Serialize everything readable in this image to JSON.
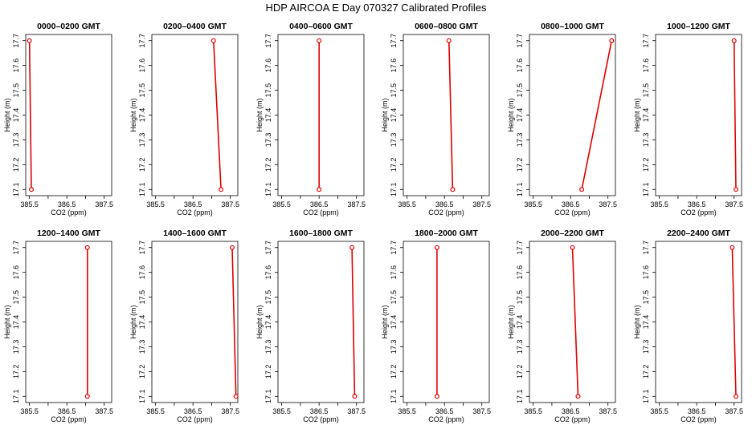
{
  "figure": {
    "title": "HDP  AIRCOA E  Day 070327  Calibrated Profiles",
    "line_color": "#dd0000",
    "axis_color": "#000000"
  },
  "chart_data": [
    {
      "type": "line",
      "title": "0000–0200 GMT",
      "xlabel": "CO2 (ppm)",
      "ylabel": "Height (m)",
      "x_ticks": [
        "385.5",
        "386.5",
        "387.5"
      ],
      "y_ticks": [
        "17.1",
        "17.2",
        "17.3",
        "17.4",
        "17.5",
        "17.6",
        "17.7"
      ],
      "xlim": [
        385.4,
        387.7
      ],
      "ylim": [
        17.075,
        17.725
      ],
      "series": [
        {
          "x": [
            385.5,
            385.55
          ],
          "y": [
            17.7,
            17.1
          ]
        }
      ]
    },
    {
      "type": "line",
      "title": "0200–0400 GMT",
      "xlabel": "CO2 (ppm)",
      "ylabel": "Height (m)",
      "x_ticks": [
        "385.5",
        "386.5",
        "387.5"
      ],
      "y_ticks": [
        "17.1",
        "17.2",
        "17.3",
        "17.4",
        "17.5",
        "17.6",
        "17.7"
      ],
      "xlim": [
        385.4,
        387.7
      ],
      "ylim": [
        17.075,
        17.725
      ],
      "series": [
        {
          "x": [
            387.05,
            387.25
          ],
          "y": [
            17.7,
            17.1
          ]
        }
      ]
    },
    {
      "type": "line",
      "title": "0400–0600 GMT",
      "xlabel": "CO2 (ppm)",
      "ylabel": "Height (m)",
      "x_ticks": [
        "385.5",
        "386.5",
        "387.5"
      ],
      "y_ticks": [
        "17.1",
        "17.2",
        "17.3",
        "17.4",
        "17.5",
        "17.6",
        "17.7"
      ],
      "xlim": [
        385.4,
        387.7
      ],
      "ylim": [
        17.075,
        17.725
      ],
      "series": [
        {
          "x": [
            386.5,
            386.5
          ],
          "y": [
            17.7,
            17.1
          ]
        }
      ]
    },
    {
      "type": "line",
      "title": "0600–0800 GMT",
      "xlabel": "CO2 (ppm)",
      "ylabel": "Height (m)",
      "x_ticks": [
        "385.5",
        "386.5",
        "387.5"
      ],
      "y_ticks": [
        "17.1",
        "17.2",
        "17.3",
        "17.4",
        "17.5",
        "17.6",
        "17.7"
      ],
      "xlim": [
        385.4,
        387.7
      ],
      "ylim": [
        17.075,
        17.725
      ],
      "series": [
        {
          "x": [
            386.62,
            386.72
          ],
          "y": [
            17.7,
            17.1
          ]
        }
      ]
    },
    {
      "type": "line",
      "title": "0800–1000 GMT",
      "xlabel": "CO2 (ppm)",
      "ylabel": "Height (m)",
      "x_ticks": [
        "385.5",
        "386.5",
        "387.5"
      ],
      "y_ticks": [
        "17.1",
        "17.2",
        "17.3",
        "17.4",
        "17.5",
        "17.6",
        "17.7"
      ],
      "xlim": [
        385.4,
        387.7
      ],
      "ylim": [
        17.075,
        17.725
      ],
      "series": [
        {
          "x": [
            387.6,
            386.8
          ],
          "y": [
            17.7,
            17.1
          ]
        }
      ]
    },
    {
      "type": "line",
      "title": "1000–1200 GMT",
      "xlabel": "CO2 (ppm)",
      "ylabel": "Height (m)",
      "x_ticks": [
        "385.5",
        "386.5",
        "387.5"
      ],
      "y_ticks": [
        "17.1",
        "17.2",
        "17.3",
        "17.4",
        "17.5",
        "17.6",
        "17.7"
      ],
      "xlim": [
        385.4,
        387.7
      ],
      "ylim": [
        17.075,
        17.725
      ],
      "series": [
        {
          "x": [
            387.5,
            387.55
          ],
          "y": [
            17.7,
            17.1
          ]
        }
      ]
    },
    {
      "type": "line",
      "title": "1200–1400 GMT",
      "xlabel": "CO2 (ppm)",
      "ylabel": "Height (m)",
      "x_ticks": [
        "385.5",
        "386.5",
        "387.5"
      ],
      "y_ticks": [
        "17.1",
        "17.2",
        "17.3",
        "17.4",
        "17.5",
        "17.6",
        "17.7"
      ],
      "xlim": [
        385.4,
        387.7
      ],
      "ylim": [
        17.075,
        17.725
      ],
      "series": [
        {
          "x": [
            387.05,
            387.05
          ],
          "y": [
            17.7,
            17.1
          ]
        }
      ]
    },
    {
      "type": "line",
      "title": "1400–1600 GMT",
      "xlabel": "CO2 (ppm)",
      "ylabel": "Height (m)",
      "x_ticks": [
        "385.5",
        "386.5",
        "387.5"
      ],
      "y_ticks": [
        "17.1",
        "17.2",
        "17.3",
        "17.4",
        "17.5",
        "17.6",
        "17.7"
      ],
      "xlim": [
        385.4,
        387.7
      ],
      "ylim": [
        17.075,
        17.725
      ],
      "series": [
        {
          "x": [
            387.55,
            387.65
          ],
          "y": [
            17.7,
            17.1
          ]
        }
      ]
    },
    {
      "type": "line",
      "title": "1600–1800 GMT",
      "xlabel": "CO2 (ppm)",
      "ylabel": "Height (m)",
      "x_ticks": [
        "385.5",
        "386.5",
        "387.5"
      ],
      "y_ticks": [
        "17.1",
        "17.2",
        "17.3",
        "17.4",
        "17.5",
        "17.6",
        "17.7"
      ],
      "xlim": [
        385.4,
        387.7
      ],
      "ylim": [
        17.075,
        17.725
      ],
      "series": [
        {
          "x": [
            387.38,
            387.45
          ],
          "y": [
            17.7,
            17.1
          ]
        }
      ]
    },
    {
      "type": "line",
      "title": "1800–2000 GMT",
      "xlabel": "CO2 (ppm)",
      "ylabel": "Height (m)",
      "x_ticks": [
        "385.5",
        "386.5",
        "387.5"
      ],
      "y_ticks": [
        "17.1",
        "17.2",
        "17.3",
        "17.4",
        "17.5",
        "17.6",
        "17.7"
      ],
      "xlim": [
        385.4,
        387.7
      ],
      "ylim": [
        17.075,
        17.725
      ],
      "series": [
        {
          "x": [
            386.3,
            386.3
          ],
          "y": [
            17.7,
            17.1
          ]
        }
      ]
    },
    {
      "type": "line",
      "title": "2000–2200 GMT",
      "xlabel": "CO2 (ppm)",
      "ylabel": "Height (m)",
      "x_ticks": [
        "385.5",
        "386.5",
        "387.5"
      ],
      "y_ticks": [
        "17.1",
        "17.2",
        "17.3",
        "17.4",
        "17.5",
        "17.6",
        "17.7"
      ],
      "xlim": [
        385.4,
        387.7
      ],
      "ylim": [
        17.075,
        17.725
      ],
      "series": [
        {
          "x": [
            386.55,
            386.7
          ],
          "y": [
            17.7,
            17.1
          ]
        }
      ]
    },
    {
      "type": "line",
      "title": "2200–2400 GMT",
      "xlabel": "CO2 (ppm)",
      "ylabel": "Height (m)",
      "x_ticks": [
        "385.5",
        "386.5",
        "387.5"
      ],
      "y_ticks": [
        "17.1",
        "17.2",
        "17.3",
        "17.4",
        "17.5",
        "17.6",
        "17.7"
      ],
      "xlim": [
        385.4,
        387.7
      ],
      "ylim": [
        17.075,
        17.725
      ],
      "series": [
        {
          "x": [
            387.45,
            387.55
          ],
          "y": [
            17.7,
            17.1
          ]
        }
      ]
    }
  ]
}
